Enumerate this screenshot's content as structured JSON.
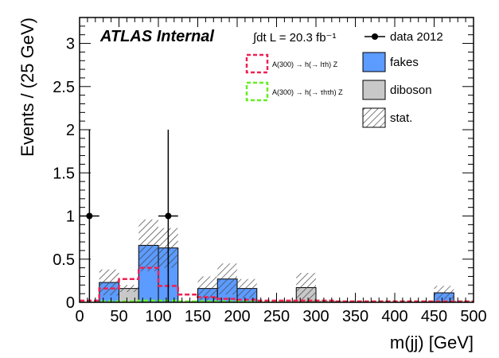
{
  "chart_data": {
    "type": "bar",
    "title": "",
    "xlabel": "m(jj) [GeV]",
    "ylabel": "Events / (25 GeV)",
    "xlim": [
      0,
      500
    ],
    "ylim": [
      0,
      3.3
    ],
    "xticks": [
      0,
      50,
      100,
      150,
      200,
      250,
      300,
      350,
      400,
      450,
      500
    ],
    "yticks": [
      0,
      0.5,
      1,
      1.5,
      2,
      2.5,
      3
    ],
    "xtick_labels": [
      "0",
      "50",
      "100",
      "150",
      "200",
      "250",
      "300",
      "350",
      "400",
      "450",
      "500"
    ],
    "ytick_labels": [
      "0",
      "0.5",
      "1",
      "1.5",
      "2",
      "2.5",
      "3"
    ],
    "bin_width": 25,
    "bin_edges_start": 0,
    "stack": {
      "diboson": [
        0.0,
        0.0,
        0.16,
        0.0,
        0.0,
        0.0,
        0.0,
        0.0,
        0.0,
        0.0,
        0.0,
        0.17,
        0.0,
        0.0,
        0.0,
        0.0,
        0.0,
        0.0,
        0.0,
        0.0
      ],
      "fakes": [
        0.0,
        0.23,
        0.0,
        0.66,
        0.63,
        0.0,
        0.16,
        0.27,
        0.16,
        0.0,
        0.0,
        0.0,
        0.0,
        0.0,
        0.0,
        0.0,
        0.0,
        0.0,
        0.11,
        0.0
      ],
      "stat_total_up": [
        0.02,
        0.38,
        0.2,
        0.96,
        0.86,
        0.02,
        0.3,
        0.45,
        0.27,
        0.02,
        0.02,
        0.34,
        0.02,
        0.02,
        0.02,
        0.02,
        0.02,
        0.02,
        0.19,
        0.02
      ]
    },
    "signal_h_tau": [
      0.02,
      0.16,
      0.27,
      0.4,
      0.19,
      0.09,
      0.06,
      0.04,
      0.03,
      0.02,
      0.02,
      0.02,
      0.02,
      0.01,
      0.01,
      0.01,
      0.01,
      0.01,
      0.01,
      0.01
    ],
    "signal_tautau": [
      0.01,
      0.01,
      0.01,
      0.02,
      0.02,
      0.01,
      0.01,
      0.01,
      0.01,
      0.01,
      0.01,
      0.01,
      0.01,
      0.01,
      0.01,
      0.01,
      0.01,
      0.01,
      0.01,
      0.01
    ],
    "data_points": [
      {
        "x": 12.5,
        "y": 1,
        "err_up": 1,
        "err_down": 1
      },
      {
        "x": 112.5,
        "y": 1,
        "err_up": 1,
        "err_down": 1
      }
    ],
    "legend": {
      "placement": "top-right",
      "entries": [
        {
          "key": "data",
          "label": "data 2012"
        },
        {
          "key": "fakes",
          "label": "fakes"
        },
        {
          "key": "diboson",
          "label": "diboson"
        },
        {
          "key": "stat",
          "label": "stat."
        }
      ],
      "signal_entries": [
        {
          "key": "sig1",
          "label": "A(300) → h(→ lτh) Z"
        },
        {
          "key": "sig2",
          "label": "A(300) → h(→ τhτh) Z"
        }
      ]
    },
    "atlas_label": "ATLAS Internal",
    "lumi_label": "∫dt L = 20.3 fb⁻¹",
    "colors": {
      "fakes": "#5c9bff",
      "diboson": "#c8c8c8",
      "sig1": "#ee2255",
      "sig2": "#66ee22",
      "data": "#000000"
    }
  }
}
